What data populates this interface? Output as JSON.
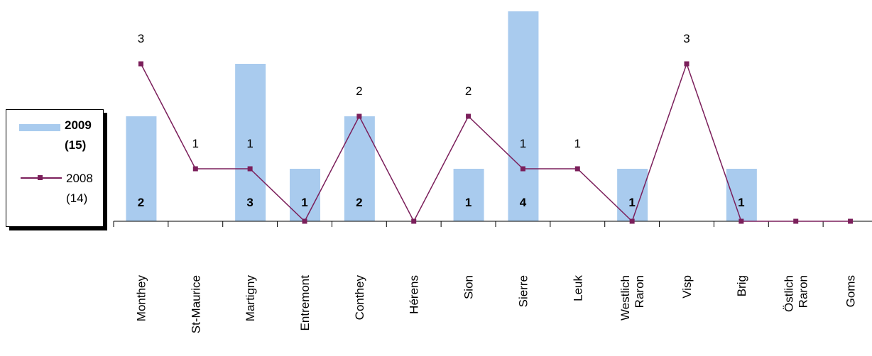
{
  "chart_data": {
    "type": "bar",
    "categories": [
      "Monthey",
      "St-Maurice",
      "Martigny",
      "Entremont",
      "Conthey",
      "Hérens",
      "Sion",
      "Sierre",
      "Leuk",
      "Westlich\nRaron",
      "Visp",
      "Brig",
      "Östlich\nRaron",
      "Goms"
    ],
    "series": [
      {
        "name": "2009\n(15)",
        "type": "bar",
        "values": [
          2,
          0,
          3,
          1,
          2,
          0,
          1,
          4,
          0,
          1,
          0,
          1,
          0,
          0
        ],
        "color": "#a9cbee",
        "labels": [
          "2",
          "",
          "3",
          "1",
          "2",
          "",
          "1",
          "4",
          "",
          "1",
          "",
          "1",
          "",
          ""
        ]
      },
      {
        "name": "2008\n(14)",
        "type": "line",
        "values": [
          3,
          1,
          1,
          0,
          2,
          0,
          2,
          1,
          1,
          0,
          3,
          0,
          0,
          0
        ],
        "color": "#7b1f5b",
        "labels": [
          "3",
          "1",
          "1",
          "",
          "2",
          "",
          "2",
          "1",
          "1",
          "",
          "3",
          "",
          "",
          ""
        ]
      }
    ],
    "ylim": [
      0,
      4
    ],
    "grid": false,
    "legend": "left"
  },
  "legend": {
    "bar_line1": "2009",
    "bar_line2": "(15)",
    "line_line1": "2008",
    "line_line2": "(14)"
  }
}
